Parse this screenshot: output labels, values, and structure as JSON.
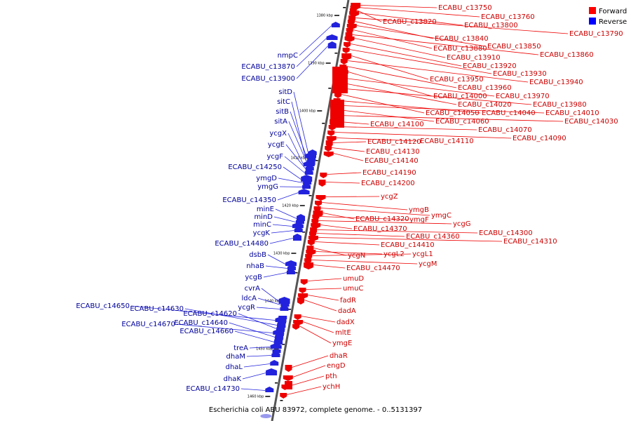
{
  "caption": "Escherichia coli ABU 83972, complete genome. - 0..5131397",
  "legend": {
    "forward": {
      "label": "Forward",
      "color": "#ff0000"
    },
    "reverse": {
      "label": "Reverse",
      "color": "#0000ff"
    }
  },
  "colors": {
    "forward": "#ee0000",
    "reverse": "#2222dd",
    "axis": "#555555",
    "forward_text": "#cc0000",
    "reverse_text": "#000099"
  },
  "ticks": [
    "1380 kbp",
    "1390 kbp",
    "1400 kbp",
    "1410 kbp",
    "1420 kbp",
    "1430 kbp",
    "1440 kbp",
    "1450 kbp",
    "1460 kbp"
  ],
  "forward_genes": [
    "ECABU_c13750",
    "ECABU_c13760",
    "ECABU_c13820",
    "ECABU_c13800",
    "ECABU_c13790",
    "ECABU_c13840",
    "ECABU_c13850",
    "ECABU_c13880",
    "ECABU_c13860",
    "ECABU_c13910",
    "ECABU_c13920",
    "ECABU_c13930",
    "ECABU_c13950",
    "ECABU_c13940",
    "ECABU_c13960",
    "ECABU_c14000",
    "ECABU_c13970",
    "ECABU_c14020",
    "ECABU_c13980",
    "ECABU_c14050",
    "ECABU_c14040",
    "ECABU_c14010",
    "ECABU_c14060",
    "ECABU_c14030",
    "ECABU_c14100",
    "ECABU_c14070",
    "ECABU_c14090",
    "ECABU_c14110",
    "ECABU_c14120",
    "ECABU_c14130",
    "ECABU_c14140",
    "ECABU_c14190",
    "ECABU_c14200",
    "ycgZ",
    "ymgB",
    "ymgC",
    "ECABU_c14320",
    "ymgF",
    "ycgG",
    "ECABU_c14370",
    "ECABU_c14300",
    "ECABU_c14360",
    "ECABU_c14310",
    "ECABU_c14410",
    "ycgN",
    "ycgL2",
    "ycgL1",
    "ycgM",
    "ECABU_c14470",
    "umuD",
    "umuC",
    "fadR",
    "dadA",
    "dadX",
    "mltE",
    "ymgE",
    "dhaR",
    "engD",
    "pth",
    "ychH"
  ],
  "reverse_genes": [
    "nmpC",
    "ECABU_c13870",
    "ECABU_c13900",
    "sitD",
    "sitC",
    "sitB",
    "sitA",
    "ycgX",
    "ycgE",
    "ycgF",
    "ECABU_c14250",
    "ymgD",
    "ymgG",
    "ECABU_c14350",
    "minE",
    "minD",
    "minC",
    "ycgK",
    "ECABU_c14480",
    "dsbB",
    "nhaB",
    "ycgB",
    "cvrA",
    "ldcA",
    "ycgR",
    "ECABU_c14650",
    "ECABU_c14630",
    "ECABU_c14620",
    "ECABU_c14670",
    "ECABU_c14640",
    "ECABU_c14660",
    "treA",
    "dhaM",
    "dhaL",
    "dhaK",
    "ECABU_c14730"
  ]
}
